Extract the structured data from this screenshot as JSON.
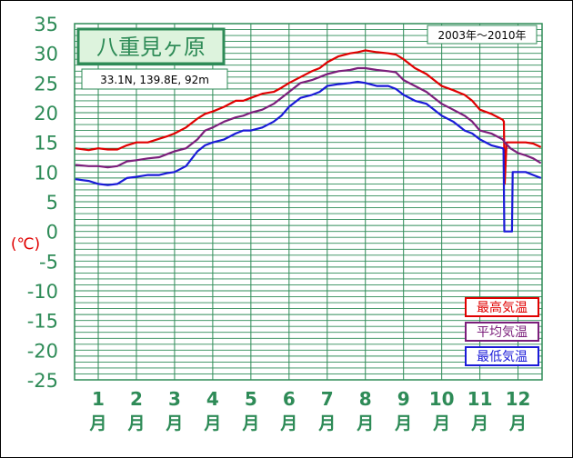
{
  "chart_data": {
    "type": "line",
    "title": "八重見ヶ原",
    "subtitle": "33.1N, 139.8E, 92m",
    "period": "2003年〜2010年",
    "ylabel": "(℃)",
    "ylim": [
      -25,
      35
    ],
    "y_ticks": [
      "35",
      "30",
      "25",
      "20",
      "15",
      "10",
      "5",
      "0",
      "-5",
      "-10",
      "-15",
      "-20",
      "-25"
    ],
    "y_tick_values": [
      35,
      30,
      25,
      20,
      15,
      10,
      5,
      0,
      -5,
      -10,
      -15,
      -20,
      -25
    ],
    "x_ticks": [
      {
        "num": "1",
        "unit": "月"
      },
      {
        "num": "2",
        "unit": "月"
      },
      {
        "num": "3",
        "unit": "月"
      },
      {
        "num": "4",
        "unit": "月"
      },
      {
        "num": "5",
        "unit": "月"
      },
      {
        "num": "6",
        "unit": "月"
      },
      {
        "num": "7",
        "unit": "月"
      },
      {
        "num": "8",
        "unit": "月"
      },
      {
        "num": "9",
        "unit": "月"
      },
      {
        "num": "10",
        "unit": "月"
      },
      {
        "num": "11",
        "unit": "月"
      },
      {
        "num": "12",
        "unit": "月"
      }
    ],
    "month_x": [
      1,
      2,
      3,
      4,
      5,
      6,
      7,
      8,
      9,
      10,
      11,
      12
    ],
    "x_range": [
      0.38,
      12.63
    ],
    "grid": true,
    "legend_position": "bottom-right",
    "colors": {
      "axis_text": "#2E8B57",
      "grid": "#2E8B57",
      "title_bg": "#DDF3DD",
      "ylabel": "#E00000"
    },
    "series": [
      {
        "name": "最高気温",
        "color": "#E00000",
        "x": [
          0.4,
          0.75,
          1.0,
          1.25,
          1.5,
          1.75,
          2.0,
          2.3,
          2.6,
          2.8,
          3.0,
          3.3,
          3.6,
          3.8,
          4.0,
          4.3,
          4.6,
          4.8,
          5.0,
          5.3,
          5.6,
          5.8,
          6.0,
          6.3,
          6.6,
          6.8,
          7.0,
          7.3,
          7.6,
          7.8,
          8.0,
          8.3,
          8.6,
          8.8,
          9.0,
          9.3,
          9.6,
          9.8,
          10.0,
          10.3,
          10.6,
          10.8,
          11.0,
          11.3,
          11.6,
          11.63,
          11.65,
          11.7,
          11.8,
          12.0,
          12.2,
          12.4,
          12.6
        ],
        "values": [
          14,
          13.7,
          14,
          13.8,
          13.8,
          14.5,
          15,
          15,
          15.6,
          16,
          16.5,
          17.5,
          19,
          19.8,
          20.2,
          21,
          22,
          22,
          22.5,
          23.2,
          23.5,
          24.2,
          25,
          26,
          27,
          27.5,
          28.5,
          29.5,
          30,
          30.2,
          30.5,
          30.2,
          30,
          29.8,
          29,
          27.5,
          26.5,
          25.5,
          24.5,
          23.8,
          23,
          22,
          20.5,
          19.8,
          18.8,
          18.5,
          8,
          15,
          15,
          15,
          15,
          14.8,
          14.2
        ]
      },
      {
        "name": "平均気温",
        "color": "#7B1E7B",
        "x": [
          0.4,
          0.75,
          1.0,
          1.25,
          1.5,
          1.75,
          2.0,
          2.3,
          2.6,
          2.8,
          3.0,
          3.3,
          3.6,
          3.8,
          4.0,
          4.3,
          4.6,
          4.8,
          5.0,
          5.3,
          5.6,
          5.8,
          6.0,
          6.3,
          6.6,
          6.8,
          7.0,
          7.3,
          7.6,
          7.8,
          8.0,
          8.3,
          8.6,
          8.8,
          9.0,
          9.3,
          9.6,
          9.8,
          10.0,
          10.3,
          10.6,
          10.8,
          11.0,
          11.3,
          11.6,
          11.65,
          11.8,
          12.0,
          12.2,
          12.4,
          12.6
        ],
        "values": [
          11.2,
          11,
          11,
          10.8,
          11,
          11.8,
          12,
          12.3,
          12.5,
          13,
          13.5,
          14,
          15.5,
          17,
          17.5,
          18.5,
          19.2,
          19.5,
          20,
          20.5,
          21.5,
          22.5,
          23.5,
          25,
          25.5,
          26,
          26.5,
          27,
          27.2,
          27.5,
          27.5,
          27.2,
          27,
          26.8,
          25.5,
          24.5,
          23.5,
          22.5,
          21.5,
          20.5,
          19.5,
          18.5,
          17,
          16.5,
          15.5,
          15,
          14,
          13.2,
          12.8,
          12.3,
          11.5
        ]
      },
      {
        "name": "最低気温",
        "color": "#1A1AD8",
        "x": [
          0.4,
          0.75,
          1.0,
          1.25,
          1.5,
          1.75,
          2.0,
          2.3,
          2.6,
          2.8,
          3.0,
          3.3,
          3.6,
          3.8,
          4.0,
          4.3,
          4.6,
          4.8,
          5.0,
          5.3,
          5.6,
          5.8,
          6.0,
          6.3,
          6.6,
          6.8,
          7.0,
          7.3,
          7.6,
          7.8,
          8.0,
          8.3,
          8.6,
          8.8,
          9.0,
          9.3,
          9.6,
          9.8,
          10.0,
          10.3,
          10.6,
          10.8,
          11.0,
          11.3,
          11.6,
          11.62,
          11.64,
          11.84,
          11.86,
          12.0,
          12.2,
          12.4,
          12.6
        ],
        "values": [
          8.8,
          8.5,
          8,
          7.8,
          8,
          9,
          9.2,
          9.5,
          9.5,
          9.8,
          10,
          11,
          13.5,
          14.5,
          15,
          15.5,
          16.5,
          17,
          17,
          17.5,
          18.5,
          19.5,
          21,
          22.5,
          23,
          23.5,
          24.5,
          24.8,
          25,
          25.2,
          25,
          24.5,
          24.5,
          24,
          23,
          22,
          21.5,
          20.5,
          19.5,
          18.5,
          17,
          16.5,
          15.5,
          14.5,
          14,
          13.8,
          0,
          0,
          10,
          10,
          10,
          9.5,
          9
        ]
      }
    ]
  }
}
